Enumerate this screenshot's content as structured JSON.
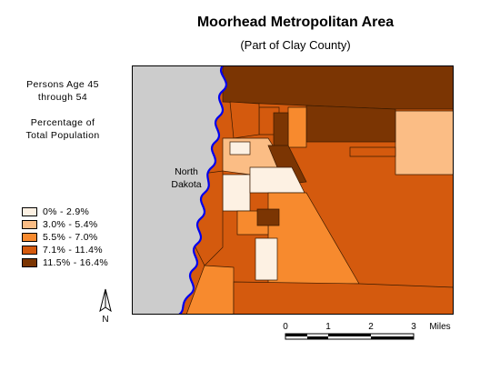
{
  "title": "Moorhead Metropolitan Area",
  "subtitle": "(Part of Clay County)",
  "description_lines": [
    "Persons Age 45",
    "through 54",
    "",
    "Percentage of",
    "Total Population"
  ],
  "place_label": [
    "North",
    "Dakota"
  ],
  "legend": [
    {
      "label": "0% - 2.9%",
      "color": "#fdf1e3"
    },
    {
      "label": "3.0% - 5.4%",
      "color": "#fbbd85"
    },
    {
      "label": "5.5% - 7.0%",
      "color": "#f78a2e"
    },
    {
      "label": "7.1% - 11.4%",
      "color": "#d45a0e"
    },
    {
      "label": "11.5% - 16.4%",
      "color": "#7b3503"
    }
  ],
  "colors": {
    "north_dakota": "#cccccc",
    "river": "#0000ee",
    "class1": "#fdf1e3",
    "class2": "#fbbd85",
    "class3": "#f78a2e",
    "class4": "#d45a0e",
    "class5": "#7b3503"
  },
  "north_arrow": {
    "letter": "N"
  },
  "scale_bar": {
    "ticks": [
      "0",
      "1",
      "2",
      "3"
    ],
    "unit": "Miles"
  }
}
